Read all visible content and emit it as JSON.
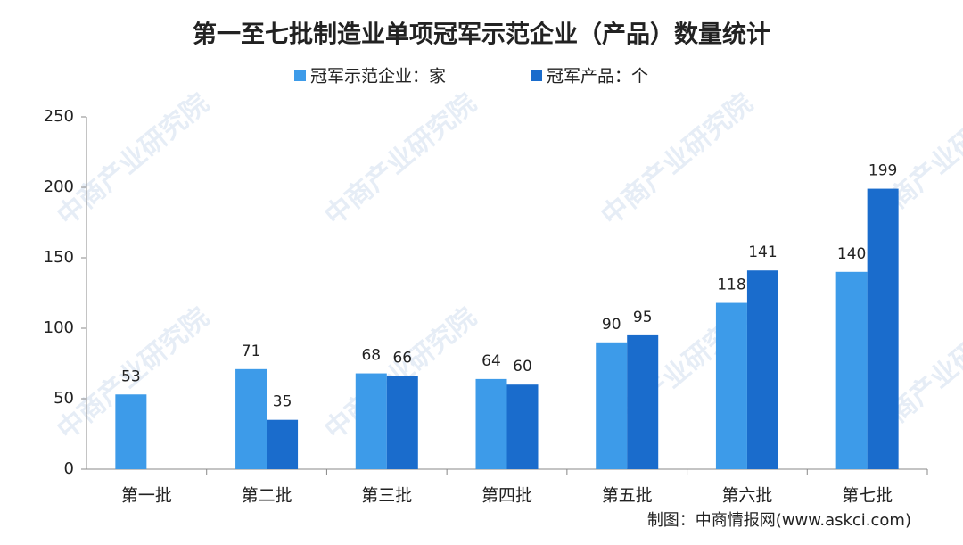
{
  "chart_data": {
    "type": "bar",
    "title": "第一至七批制造业单项冠军示范企业（产品）数量统计",
    "categories": [
      "第一批",
      "第二批",
      "第三批",
      "第四批",
      "第五批",
      "第六批",
      "第七批"
    ],
    "series": [
      {
        "name": "冠军示范企业：家",
        "color": "#3d9be9",
        "values": [
          53,
          71,
          68,
          64,
          90,
          118,
          140
        ]
      },
      {
        "name": "冠军产品：个",
        "color": "#1a6ccc",
        "values": [
          null,
          35,
          66,
          60,
          95,
          141,
          199
        ]
      }
    ],
    "ylim": [
      0,
      250
    ],
    "yticks": [
      0,
      50,
      100,
      150,
      200,
      250
    ],
    "grid": false,
    "source": "制图：中商情报网(www.askci.com)",
    "watermark": "中商产业研究院"
  }
}
